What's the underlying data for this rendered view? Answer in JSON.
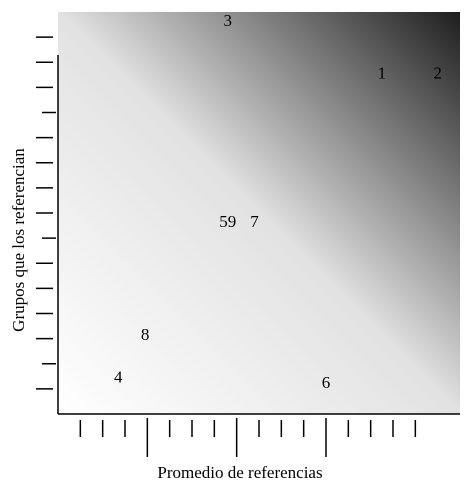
{
  "chart_data": {
    "type": "scatter",
    "title": "",
    "xlabel": "Promedio de referencias",
    "ylabel": "Grupos que los referencian",
    "xlim": [
      0,
      18
    ],
    "ylim": [
      0,
      16
    ],
    "x_ticks": [
      1,
      2,
      3,
      4,
      5,
      6,
      7,
      8,
      9,
      10,
      11,
      12,
      13,
      14,
      15,
      16
    ],
    "x_major_ticks": [
      4,
      8,
      12
    ],
    "y_ticks": [
      1,
      2,
      3,
      4,
      5,
      6,
      7,
      8,
      9,
      10,
      11,
      12,
      13,
      14,
      15
    ],
    "y_major_ticks": [
      2,
      7,
      12
    ],
    "grid": false,
    "background": {
      "type": "diagonal-gradient",
      "from": "bottom-left",
      "to": "top-right",
      "light_color": "#ffffff",
      "dark_color": "#1e1e1e"
    },
    "points": [
      {
        "label": "1",
        "x": 14.5,
        "y": 13.5
      },
      {
        "label": "2",
        "x": 17.0,
        "y": 13.5
      },
      {
        "label": "3",
        "x": 7.6,
        "y": 15.6
      },
      {
        "label": "4",
        "x": 2.7,
        "y": 1.4
      },
      {
        "label": "59",
        "x": 7.6,
        "y": 7.6
      },
      {
        "label": "7",
        "x": 8.8,
        "y": 7.6
      },
      {
        "label": "6",
        "x": 12.0,
        "y": 1.2
      },
      {
        "label": "8",
        "x": 3.9,
        "y": 3.1
      }
    ]
  }
}
